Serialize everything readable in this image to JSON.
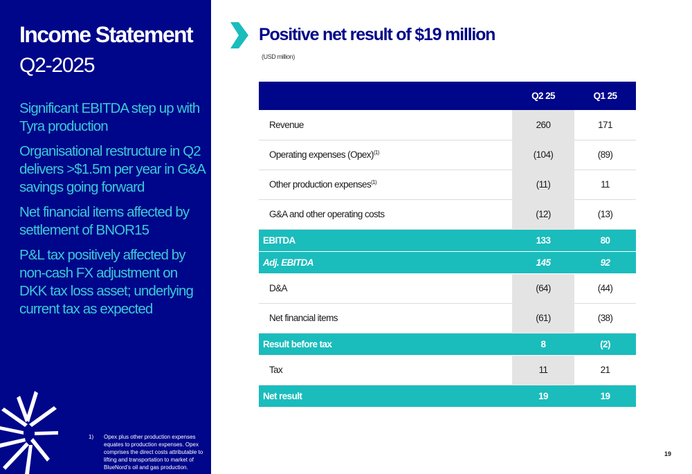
{
  "sidebar": {
    "title": "Income Statement",
    "subtitle": "Q2-2025",
    "points": [
      "Significant EBITDA step up with Tyra production",
      "Organisational restructure in Q2 delivers >$1.5m per year in G&A savings going forward",
      "Net financial items affected by settlement of BNOR15",
      "P&L tax positively affected by non-cash FX adjustment on DKK tax loss asset; underlying current tax as expected"
    ],
    "footnote": {
      "number": "1)",
      "text": "Opex plus other production expenses equates to production expenses. Opex comprises the direct costs attributable to lifting and transportation to market of BlueNord’s oil and gas production."
    }
  },
  "header": {
    "title": "Positive net result of $19 million",
    "unit_note": "(USD million)"
  },
  "table": {
    "columns": [
      "Q2 25",
      "Q1 25"
    ],
    "rows": [
      {
        "label": "Revenue",
        "sup": "",
        "q2": "260",
        "q1": "171"
      },
      {
        "label": "Operating expenses (Opex)",
        "sup": "(1)",
        "q2": "(104)",
        "q1": "(89)"
      },
      {
        "label": "Other production expenses",
        "sup": "(1)",
        "q2": "(11)",
        "q1": "11"
      },
      {
        "label": "G&A and other operating costs",
        "sup": "",
        "q2": "(12)",
        "q1": "(13)"
      },
      {
        "label": "EBITDA",
        "sup": "",
        "q2": "133",
        "q1": "80"
      },
      {
        "label": "Adj. EBITDA",
        "sup": "",
        "q2": "145",
        "q1": "92"
      },
      {
        "label": "D&A",
        "sup": "",
        "q2": "(64)",
        "q1": "(44)"
      },
      {
        "label": "Net financial items",
        "sup": "",
        "q2": "(61)",
        "q1": "(38)"
      },
      {
        "label": "Result before tax",
        "sup": "",
        "q2": "8",
        "q1": "(2)"
      },
      {
        "label": "Tax",
        "sup": "",
        "q2": "11",
        "q1": "21"
      },
      {
        "label": "Net result",
        "sup": "",
        "q2": "19",
        "q1": "19"
      }
    ]
  },
  "page_number": "19",
  "colors": {
    "navy": "#00068a",
    "teal": "#1bbcbc",
    "light_teal_text": "#3cc9d6",
    "shaded_column": "#e4e4e4"
  },
  "icons": {
    "header_marker": "chevron-right-icon",
    "brand_mark": "starburst-logo"
  }
}
